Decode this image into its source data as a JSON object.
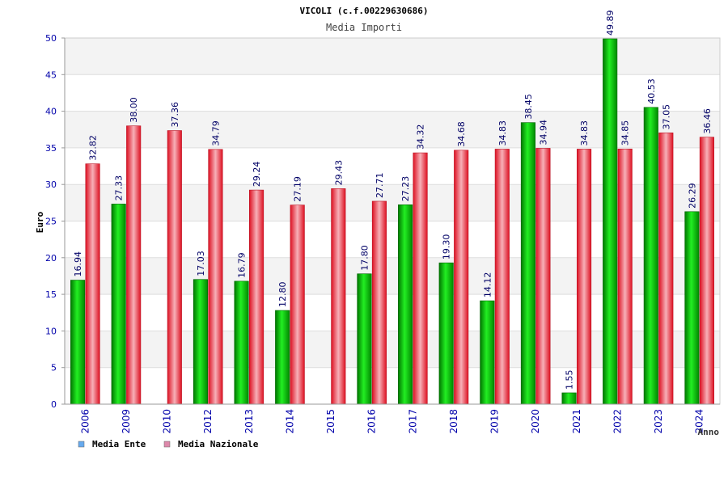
{
  "chart_data": {
    "type": "bar",
    "title": "VICOLI (c.f.00229630686)",
    "subtitle": "Media Importi",
    "xlabel": "Anno",
    "ylabel": "Euro",
    "ylim": [
      0,
      50
    ],
    "yticks": [
      0,
      5,
      10,
      15,
      20,
      25,
      30,
      35,
      40,
      45,
      50
    ],
    "grid": true,
    "legend_position": "bottom-left",
    "categories": [
      "2006",
      "2009",
      "2010",
      "2012",
      "2013",
      "2014",
      "2015",
      "2016",
      "2017",
      "2018",
      "2019",
      "2020",
      "2021",
      "2022",
      "2023",
      "2024"
    ],
    "series": [
      {
        "name": "Media Ente",
        "legend_color": "#66aaee",
        "bar_color": "#00bb00",
        "values": [
          16.94,
          27.33,
          null,
          17.03,
          16.79,
          12.8,
          null,
          17.8,
          27.23,
          19.3,
          14.12,
          38.45,
          1.55,
          49.89,
          40.53,
          26.29
        ],
        "labels": [
          "16.94",
          "27.33",
          "",
          "17.03",
          "16.79",
          "12.80",
          "",
          "17.80",
          "27.23",
          "19.30",
          "14.12",
          "38.45",
          "1.55",
          "49.89",
          "40.53",
          "26.29"
        ]
      },
      {
        "name": "Media Nazionale",
        "legend_color": "#dd88aa",
        "bar_color": "#ee2233",
        "values": [
          32.82,
          38.0,
          37.36,
          34.79,
          29.24,
          27.19,
          29.43,
          27.71,
          34.32,
          34.68,
          34.83,
          34.94,
          34.83,
          34.85,
          37.05,
          36.46
        ],
        "labels": [
          "32.82",
          "38.00",
          "37.36",
          "34.79",
          "29.24",
          "27.19",
          "29.43",
          "27.71",
          "34.32",
          "34.68",
          "34.83",
          "34.94",
          "34.83",
          "34.85",
          "37.05",
          "36.46"
        ]
      }
    ]
  }
}
